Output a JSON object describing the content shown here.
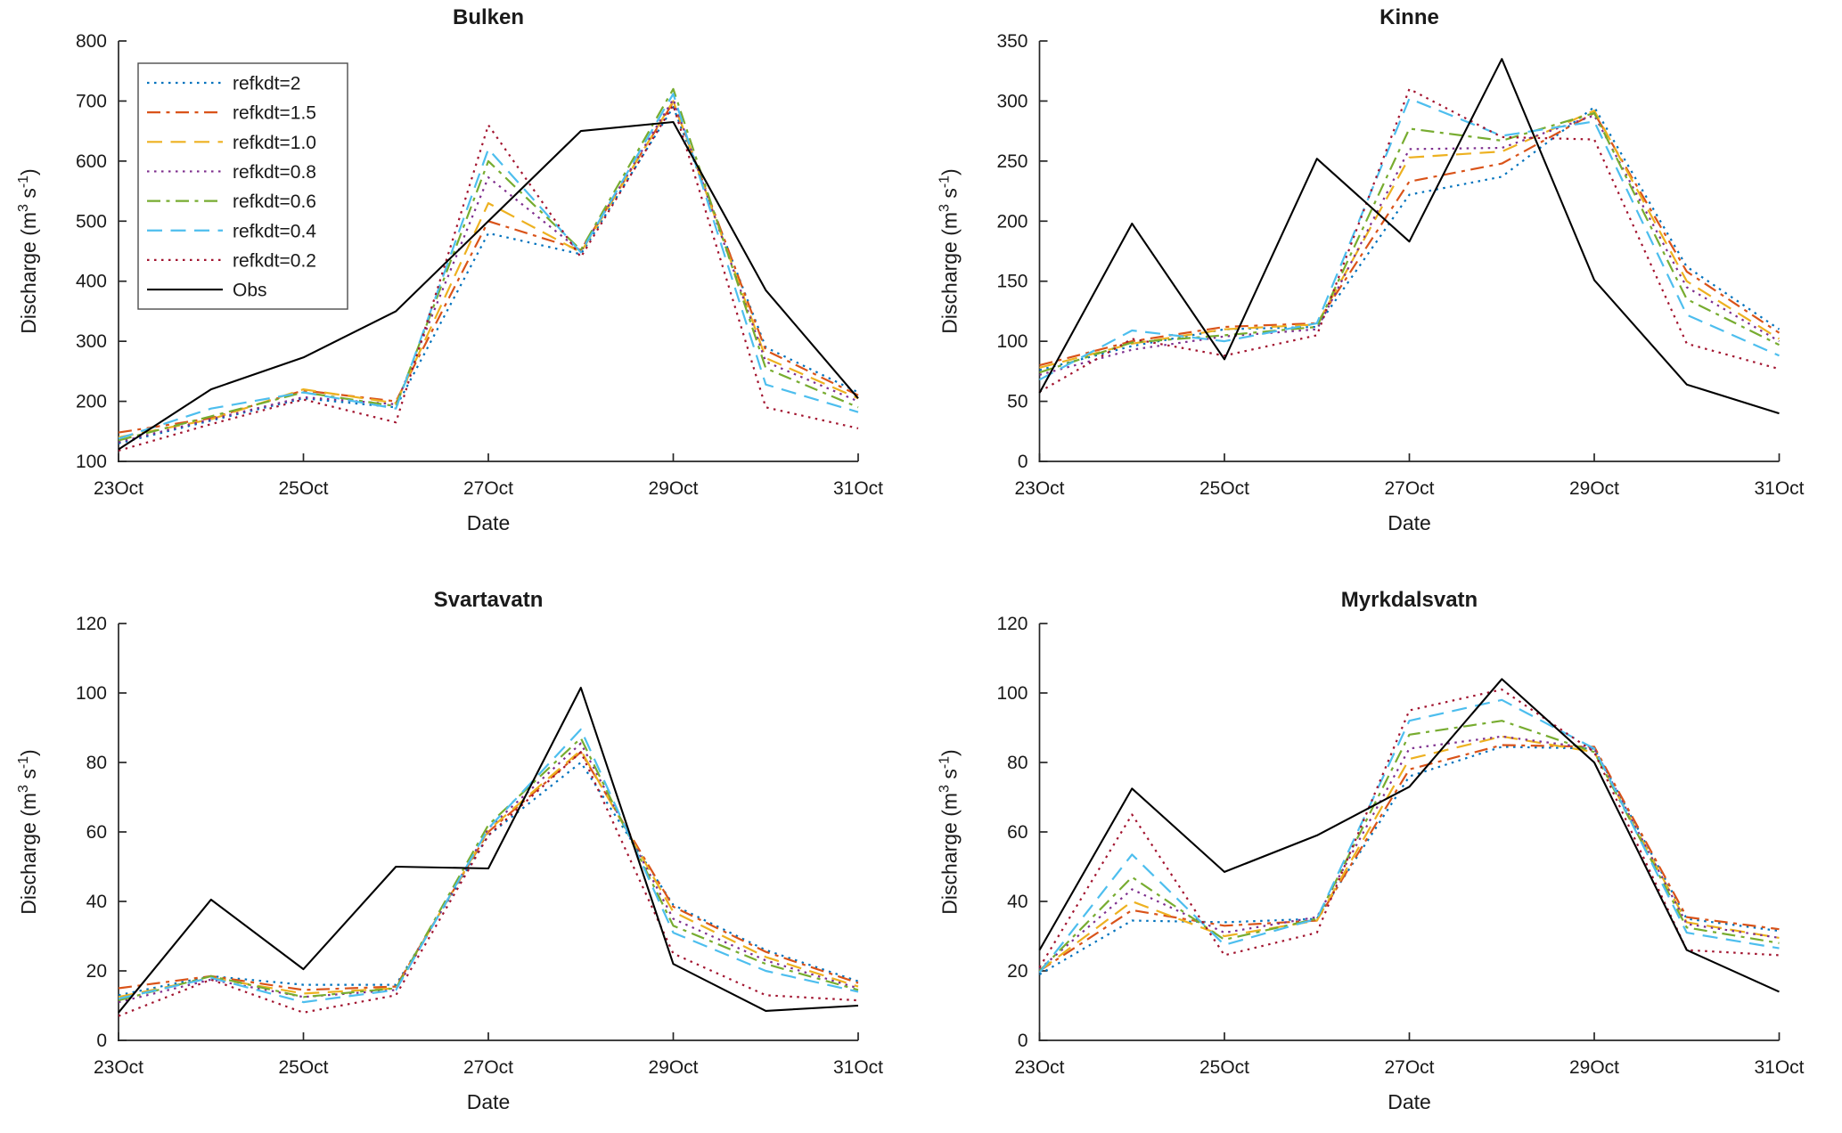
{
  "figure": {
    "xlabel": "Date",
    "ylabel": "Discharge (m3 s-1)",
    "ylabel_parts": [
      {
        "t": "Discharge (m"
      },
      {
        "t": "3",
        "sup": true
      },
      {
        "t": " s",
        "nbsp": true
      },
      {
        "t": "-1",
        "sup": true
      },
      {
        "t": ")"
      }
    ]
  },
  "legend": {
    "position": "top-left-of-first-panel",
    "entries": [
      {
        "label": "refkdt=2",
        "color": "#0072BD",
        "style": "dotted"
      },
      {
        "label": "refkdt=1.5",
        "color": "#D95319",
        "style": "dashdot"
      },
      {
        "label": "refkdt=1.0",
        "color": "#EDB120",
        "style": "dashed"
      },
      {
        "label": "refkdt=0.8",
        "color": "#7E2F8E",
        "style": "dotted"
      },
      {
        "label": "refkdt=0.6",
        "color": "#77AC30",
        "style": "dashdot"
      },
      {
        "label": "refkdt=0.4",
        "color": "#4DBEEE",
        "style": "dashed"
      },
      {
        "label": "refkdt=0.2",
        "color": "#A2142F",
        "style": "dotted"
      },
      {
        "label": "Obs",
        "color": "#000000",
        "style": "solid"
      }
    ]
  },
  "chart_data": [
    {
      "type": "line",
      "title": "Bulken",
      "xlabel": "Date",
      "ylabel": "Discharge (m3 s-1)",
      "x": [
        23,
        24,
        25,
        26,
        27,
        28,
        29,
        30,
        31
      ],
      "xticks": [
        23,
        25,
        27,
        29,
        31
      ],
      "xtick_labels": [
        "23Oct",
        "25Oct",
        "27Oct",
        "29Oct",
        "31Oct"
      ],
      "ylim": [
        100,
        800
      ],
      "yticks": [
        100,
        200,
        300,
        400,
        500,
        600,
        700,
        800
      ],
      "grid": false,
      "show_legend": true,
      "series": [
        {
          "name": "refkdt=2",
          "values": [
            130,
            168,
            205,
            190,
            480,
            445,
            690,
            290,
            215
          ]
        },
        {
          "name": "refkdt=1.5",
          "values": [
            148,
            172,
            218,
            200,
            500,
            452,
            698,
            285,
            210
          ]
        },
        {
          "name": "refkdt=1.0",
          "values": [
            140,
            170,
            220,
            197,
            530,
            448,
            700,
            272,
            205
          ]
        },
        {
          "name": "refkdt=0.8",
          "values": [
            132,
            170,
            207,
            195,
            573,
            450,
            703,
            266,
            200
          ]
        },
        {
          "name": "refkdt=0.6",
          "values": [
            135,
            175,
            215,
            192,
            600,
            452,
            720,
            255,
            190
          ]
        },
        {
          "name": "refkdt=0.4",
          "values": [
            138,
            188,
            215,
            188,
            620,
            448,
            712,
            228,
            182
          ]
        },
        {
          "name": "refkdt=0.2",
          "values": [
            118,
            162,
            203,
            165,
            660,
            440,
            693,
            190,
            155
          ]
        },
        {
          "name": "Obs",
          "values": [
            120,
            220,
            273,
            350,
            500,
            650,
            665,
            385,
            205
          ]
        }
      ]
    },
    {
      "type": "line",
      "title": "Kinne",
      "xlabel": "Date",
      "ylabel": "Discharge (m3 s-1)",
      "x": [
        23,
        24,
        25,
        26,
        27,
        28,
        29,
        30,
        31
      ],
      "xticks": [
        23,
        25,
        27,
        29,
        31
      ],
      "xtick_labels": [
        "23Oct",
        "25Oct",
        "27Oct",
        "29Oct",
        "31Oct"
      ],
      "ylim": [
        0,
        350
      ],
      "yticks": [
        0,
        50,
        100,
        150,
        200,
        250,
        300,
        350
      ],
      "grid": false,
      "show_legend": false,
      "series": [
        {
          "name": "refkdt=2",
          "values": [
            76,
            96,
            110,
            112,
            222,
            237,
            295,
            162,
            110
          ]
        },
        {
          "name": "refkdt=1.5",
          "values": [
            80,
            100,
            112,
            115,
            233,
            248,
            290,
            158,
            107
          ]
        },
        {
          "name": "refkdt=1.0",
          "values": [
            78,
            98,
            110,
            114,
            253,
            258,
            292,
            150,
            102
          ]
        },
        {
          "name": "refkdt=0.8",
          "values": [
            72,
            93,
            104,
            110,
            260,
            261,
            288,
            145,
            100
          ]
        },
        {
          "name": "refkdt=0.6",
          "values": [
            74,
            99,
            105,
            112,
            277,
            267,
            290,
            135,
            97
          ]
        },
        {
          "name": "refkdt=0.4",
          "values": [
            68,
            109,
            100,
            115,
            302,
            271,
            283,
            122,
            88
          ]
        },
        {
          "name": "refkdt=0.2",
          "values": [
            58,
            102,
            88,
            105,
            310,
            270,
            268,
            98,
            77
          ]
        },
        {
          "name": "Obs",
          "values": [
            57,
            198,
            85,
            252,
            183,
            335,
            151,
            64,
            40
          ]
        }
      ]
    },
    {
      "type": "line",
      "title": "Svartavatn",
      "xlabel": "Date",
      "ylabel": "Discharge (m3 s-1)",
      "x": [
        23,
        24,
        25,
        26,
        27,
        28,
        29,
        30,
        31
      ],
      "xticks": [
        23,
        25,
        27,
        29,
        31
      ],
      "xtick_labels": [
        "23Oct",
        "25Oct",
        "27Oct",
        "29Oct",
        "31Oct"
      ],
      "ylim": [
        0,
        120
      ],
      "yticks": [
        0,
        20,
        40,
        60,
        80,
        100,
        120
      ],
      "grid": false,
      "show_legend": false,
      "series": [
        {
          "name": "refkdt=2",
          "values": [
            13,
            18.5,
            16,
            16,
            59,
            80,
            39,
            26,
            17
          ]
        },
        {
          "name": "refkdt=1.5",
          "values": [
            15,
            18.5,
            14.5,
            15.5,
            60,
            83,
            38.5,
            25.5,
            16.5
          ]
        },
        {
          "name": "refkdt=1.0",
          "values": [
            12.5,
            18,
            13.5,
            15,
            60.5,
            83.5,
            37,
            24,
            15.5
          ]
        },
        {
          "name": "refkdt=0.8",
          "values": [
            11,
            17.5,
            12.5,
            14.5,
            61,
            85.5,
            35,
            23,
            15
          ]
        },
        {
          "name": "refkdt=0.6",
          "values": [
            11.5,
            18.5,
            12.5,
            15,
            62,
            87,
            33,
            22,
            14.5
          ]
        },
        {
          "name": "refkdt=0.4",
          "values": [
            12,
            18,
            11,
            14.5,
            61,
            89.5,
            31,
            20,
            14
          ]
        },
        {
          "name": "refkdt=0.2",
          "values": [
            7,
            17.5,
            8,
            13,
            59,
            83,
            25,
            13,
            11.5
          ]
        },
        {
          "name": "Obs",
          "values": [
            8,
            40.5,
            20.5,
            50,
            49.5,
            101.5,
            22,
            8.5,
            10
          ]
        }
      ]
    },
    {
      "type": "line",
      "title": "Myrkdalsvatn",
      "xlabel": "Date",
      "ylabel": "Discharge (m3 s-1)",
      "x": [
        23,
        24,
        25,
        26,
        27,
        28,
        29,
        30,
        31
      ],
      "xticks": [
        23,
        25,
        27,
        29,
        31
      ],
      "xtick_labels": [
        "23Oct",
        "25Oct",
        "27Oct",
        "29Oct",
        "31Oct"
      ],
      "ylim": [
        0,
        120
      ],
      "yticks": [
        0,
        20,
        40,
        60,
        80,
        100,
        120
      ],
      "grid": false,
      "show_legend": false,
      "series": [
        {
          "name": "refkdt=2",
          "values": [
            19,
            34.5,
            34,
            35,
            76,
            84.5,
            84,
            35,
            31.5
          ]
        },
        {
          "name": "refkdt=1.5",
          "values": [
            20,
            37.5,
            33,
            34.5,
            78,
            85,
            84.5,
            35.5,
            32
          ]
        },
        {
          "name": "refkdt=1.0",
          "values": [
            20,
            40,
            30,
            34.5,
            81,
            87.5,
            83,
            34,
            29.5
          ]
        },
        {
          "name": "refkdt=0.8",
          "values": [
            20.5,
            43.5,
            31,
            35.5,
            84,
            87.5,
            84,
            33.5,
            29.5
          ]
        },
        {
          "name": "refkdt=0.6",
          "values": [
            20,
            47,
            29,
            35,
            88,
            92,
            83,
            32.5,
            28
          ]
        },
        {
          "name": "refkdt=0.4",
          "values": [
            19.5,
            53.5,
            27.5,
            35,
            92,
            98,
            84,
            31,
            26.5
          ]
        },
        {
          "name": "refkdt=0.2",
          "values": [
            21,
            65,
            24.5,
            31,
            95,
            101,
            83,
            26,
            24.5
          ]
        },
        {
          "name": "Obs",
          "values": [
            26,
            72.5,
            48.5,
            59,
            73,
            104,
            80,
            26,
            14
          ]
        }
      ]
    }
  ],
  "style": {
    "axis_color": "#262626",
    "text_color": "#1a1a1a",
    "legend_border_color": "#4d4d4d",
    "background": "#ffffff"
  }
}
